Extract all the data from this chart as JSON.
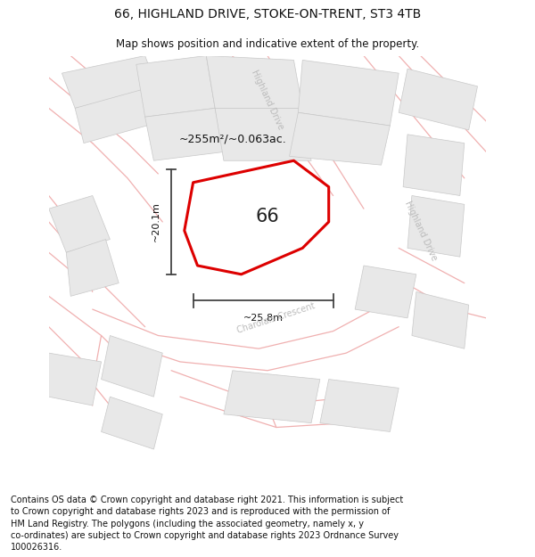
{
  "title": "66, HIGHLAND DRIVE, STOKE-ON-TRENT, ST3 4TB",
  "subtitle": "Map shows position and indicative extent of the property.",
  "footer": "Contains OS data © Crown copyright and database right 2021. This information is subject\nto Crown copyright and database rights 2023 and is reproduced with the permission of\nHM Land Registry. The polygons (including the associated geometry, namely x, y\nco-ordinates) are subject to Crown copyright and database rights 2023 Ordnance Survey\n100026316.",
  "area_label": "~255m²/~0.063ac.",
  "width_label": "~25.8m",
  "height_label": "~20.1m",
  "number_label": "66",
  "bg_color": "#ffffff",
  "map_bg": "#ffffff",
  "plot_border_color": "#dd0000",
  "plot_fill_color": "#ffffff",
  "building_fill": "#e8e8e8",
  "building_edge": "#c8c8c8",
  "road_line_color": "#f0b0b0",
  "dim_line_color": "#444444",
  "street_label_color": "#bbbbbb",
  "title_fontsize": 10,
  "subtitle_fontsize": 8.5,
  "footer_fontsize": 7.0
}
